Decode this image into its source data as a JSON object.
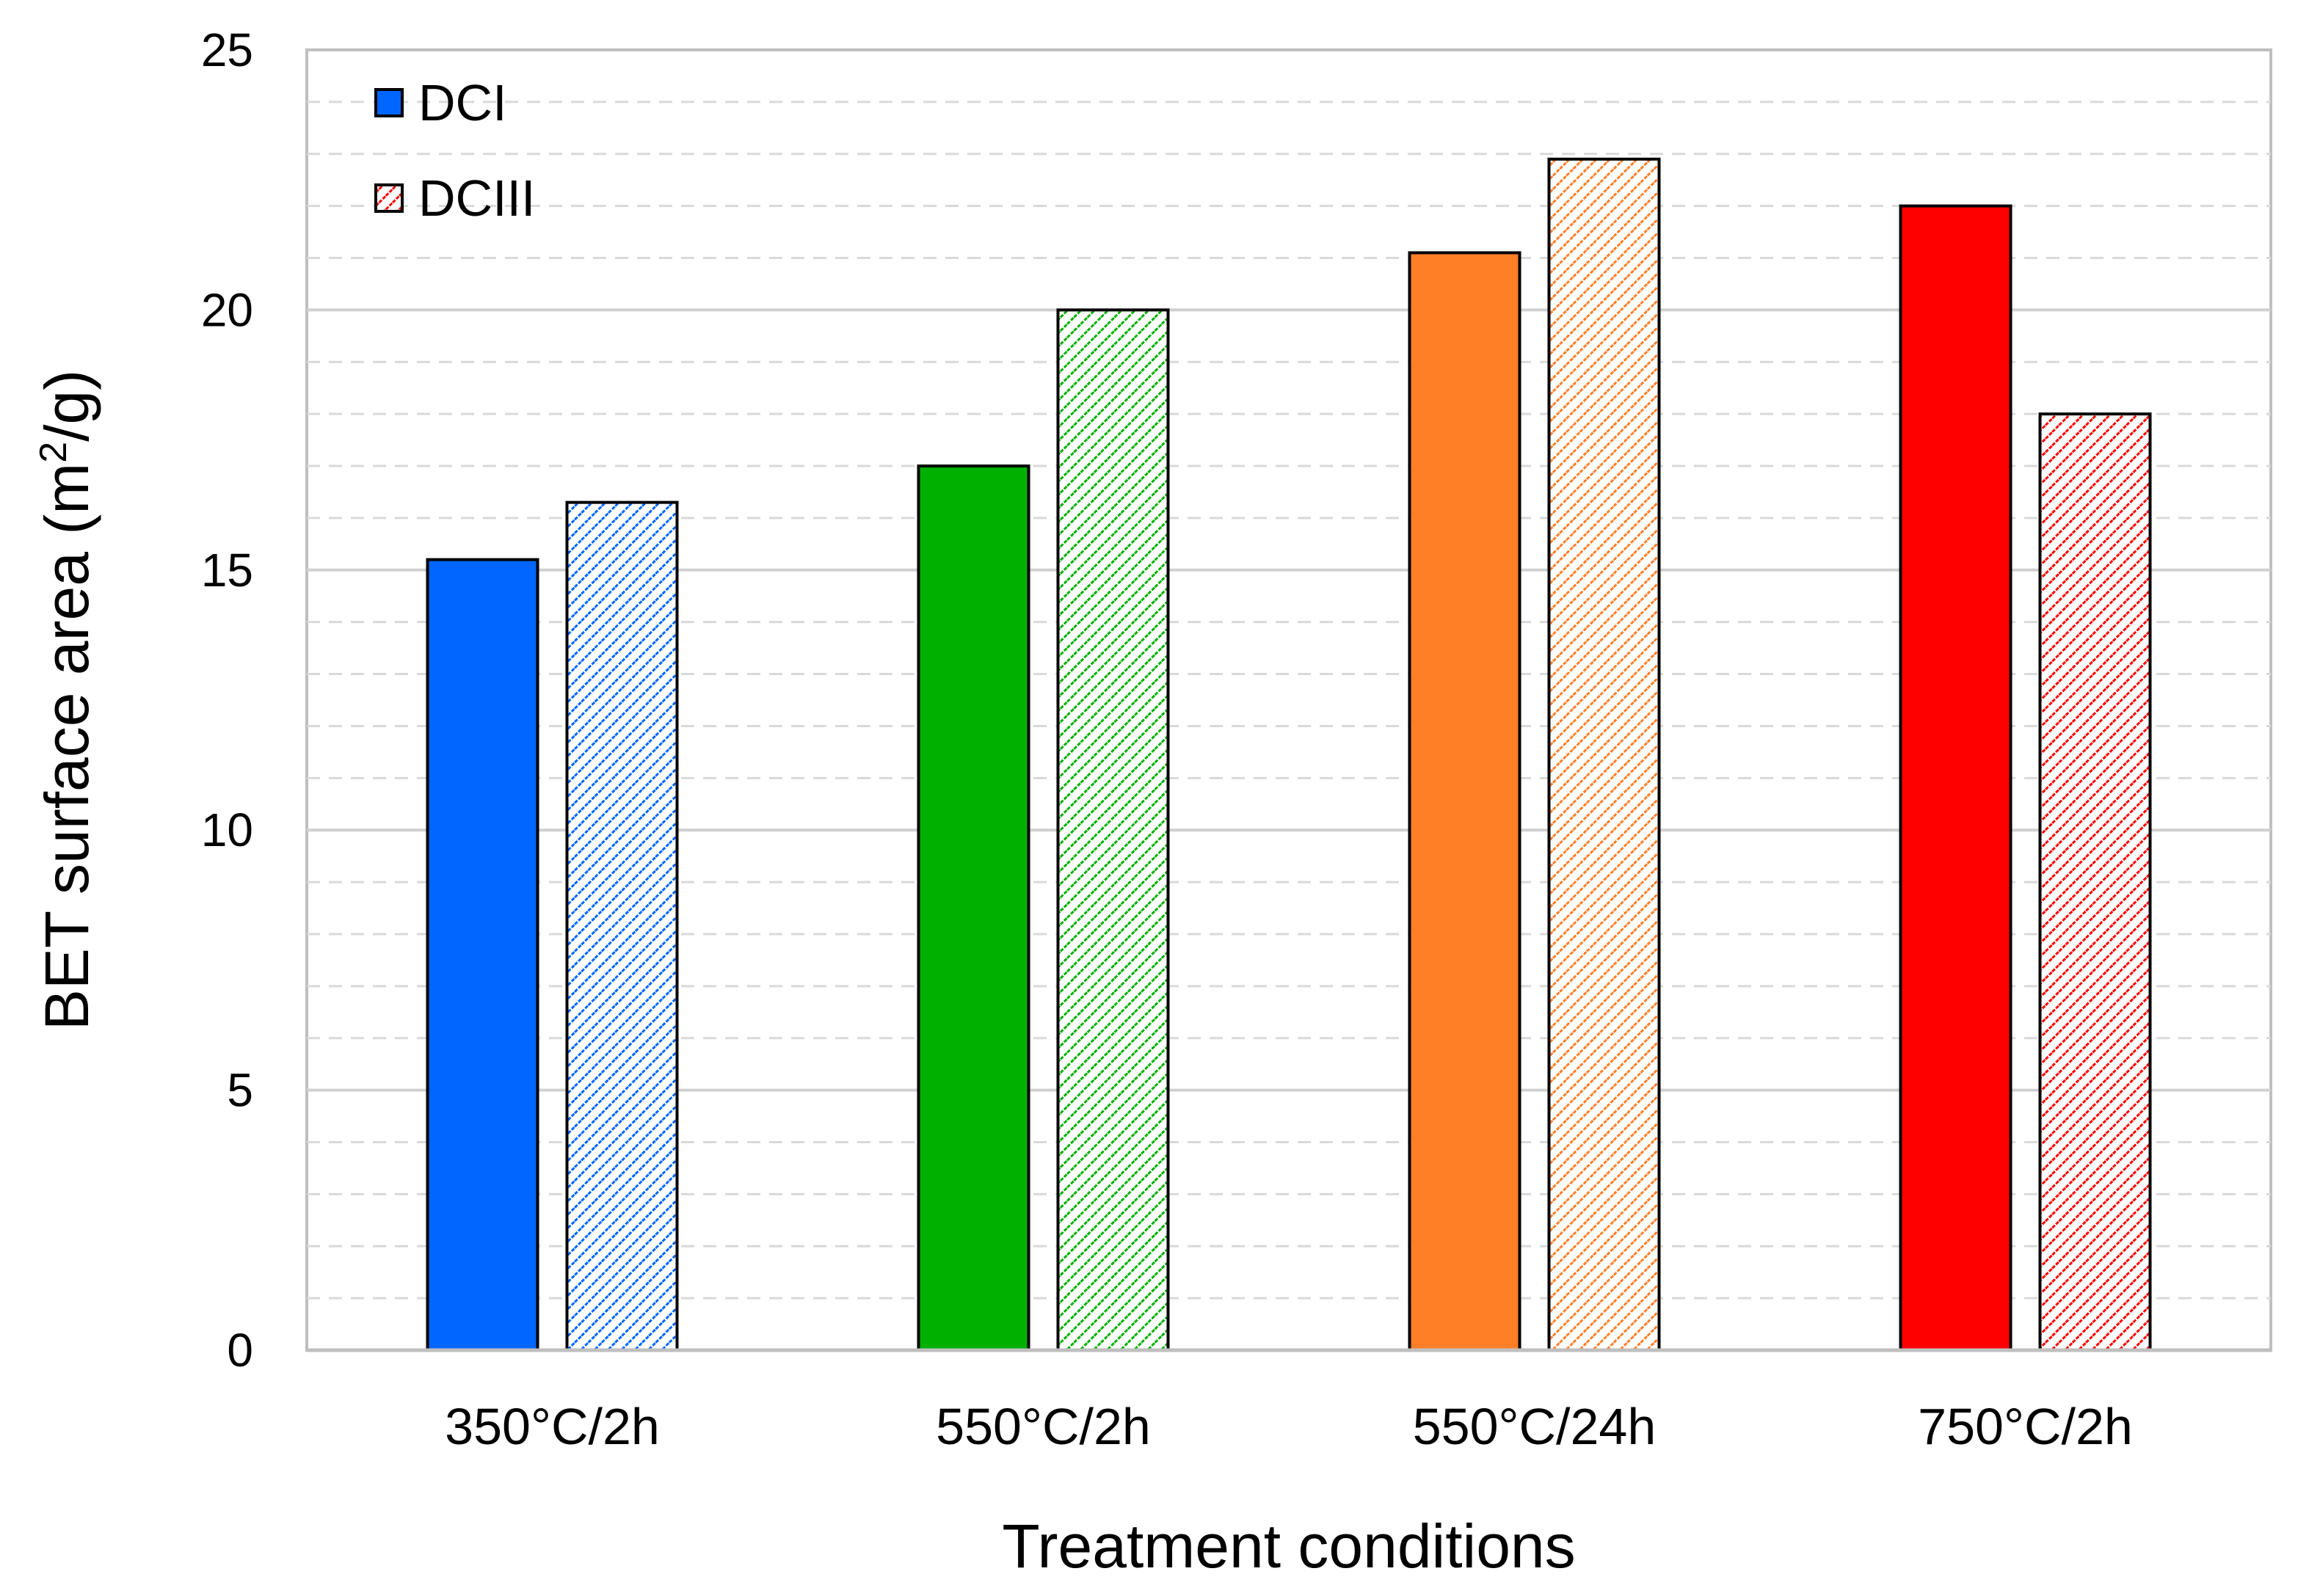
{
  "chart_data": {
    "type": "bar",
    "title": "",
    "xlabel": "Treatment conditions",
    "ylabel_parts": {
      "main": "BET surface area (m",
      "superscript": "2",
      "tail": "/g)"
    },
    "ylim": [
      0,
      25
    ],
    "yticks": [
      "0",
      "5",
      "10",
      "15",
      "20",
      "25"
    ],
    "grid": {
      "major": true,
      "minor": true,
      "minor_style": "dashed"
    },
    "legend_position": "top-left",
    "categories": [
      "350°C/2h",
      "550°C/2h",
      "550°C/24h",
      "750°C/2h"
    ],
    "category_colors": [
      "#0066FF",
      "#00B000",
      "#FF7F27",
      "#FF0000"
    ],
    "series": [
      {
        "name": "DCI",
        "fill": "solid",
        "values": [
          15.2,
          17.0,
          21.1,
          22.0
        ]
      },
      {
        "name": "DCIII",
        "fill": "hatched",
        "values": [
          16.3,
          20.0,
          22.9,
          18.0
        ]
      }
    ],
    "legend_swatch_colors": [
      "#0066FF",
      "#FF0000"
    ]
  }
}
